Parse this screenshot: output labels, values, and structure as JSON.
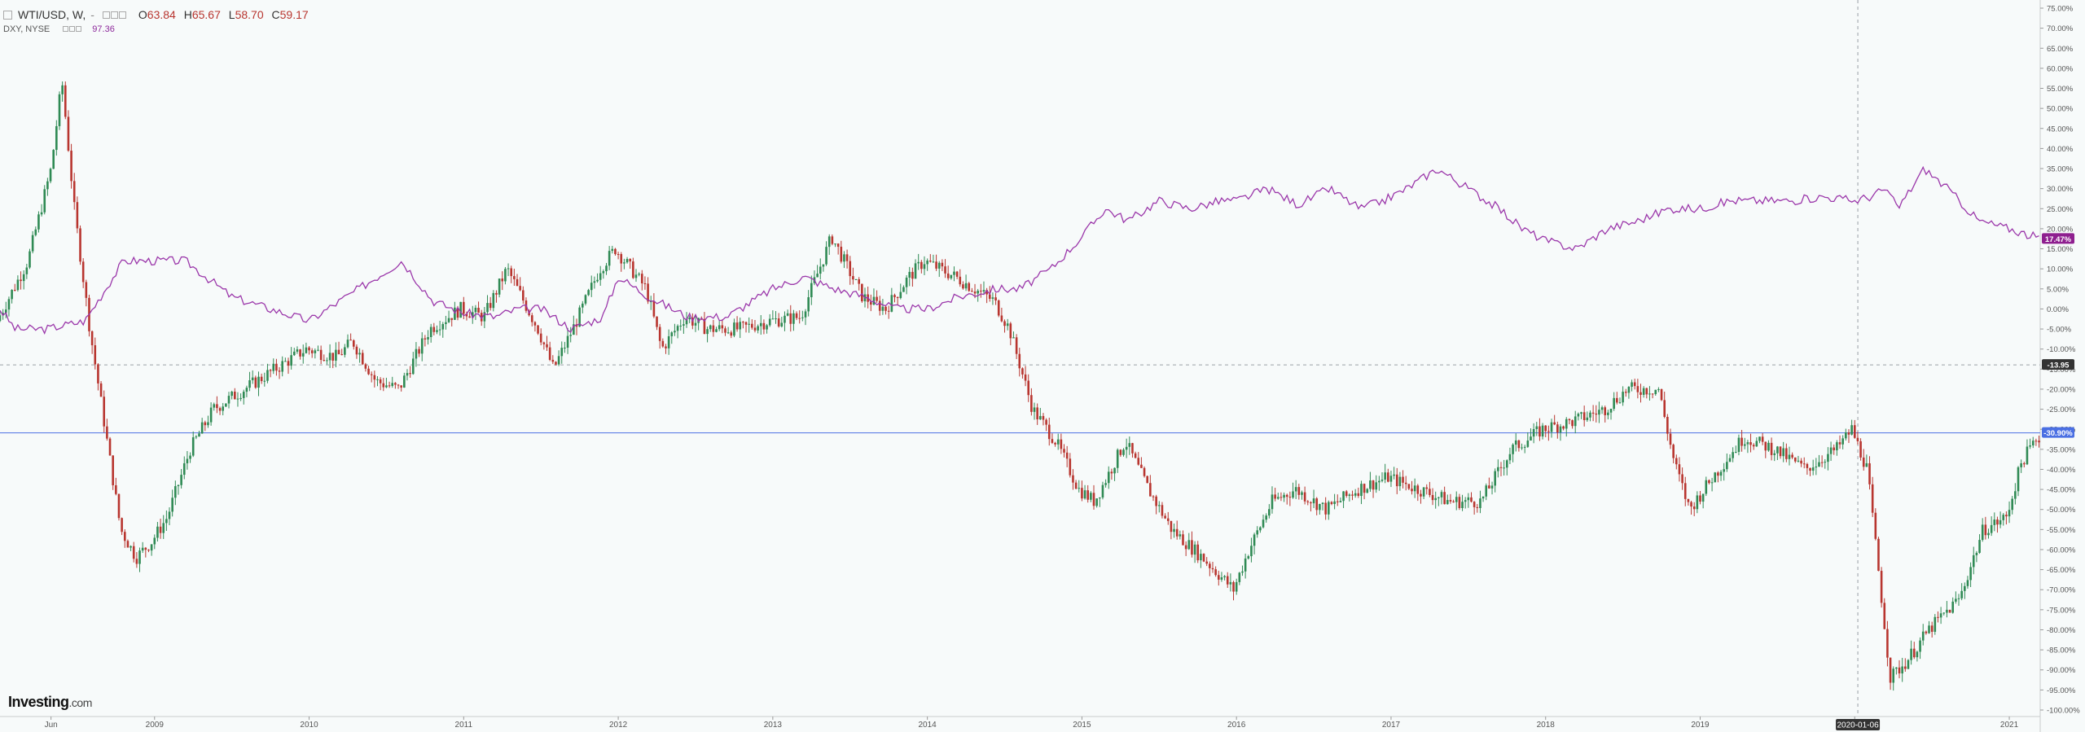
{
  "legend": {
    "symbol": "WTI/USD, W,",
    "dash": "-",
    "open_label": "O",
    "open": "63.84",
    "high_label": "H",
    "high": "65.67",
    "low_label": "L",
    "low": "58.70",
    "close_label": "C",
    "close": "59.17",
    "series2": "DXY, NYSE",
    "series2_value": "97.36"
  },
  "logo": {
    "main": "Investing",
    "suffix": ".com"
  },
  "colors": {
    "up": "#2f8a54",
    "down": "#b8352f",
    "dxy": "#9b37aa",
    "hline_blue": "#4a6fe3",
    "dashed": "#9aa0a6",
    "axis_text": "#555555",
    "badge_dxy": "#8e1f8f",
    "badge_blue": "#4a6fe3",
    "badge_gray": "#333333"
  },
  "chart_data": {
    "type": "line",
    "title": "WTI/USD, W,",
    "yaxis": {
      "scale": "percent",
      "ylim": [
        -100,
        75
      ],
      "tick_labels": [
        "75.00%",
        "70.00%",
        "65.00%",
        "60.00%",
        "55.00%",
        "50.00%",
        "45.00%",
        "40.00%",
        "35.00%",
        "30.00%",
        "25.00%",
        "20.00%",
        "15.00%",
        "10.00%",
        "5.00%",
        "0.00%",
        "-5.00%",
        "-10.00%",
        "-15.00%",
        "-20.00%",
        "-25.00%",
        "-30.00%",
        "-35.00%",
        "-40.00%",
        "-45.00%",
        "-50.00%",
        "-55.00%",
        "-60.00%",
        "-65.00%",
        "-70.00%",
        "-75.00%",
        "-80.00%",
        "-85.00%",
        "-90.00%",
        "-95.00%",
        "-100.00%"
      ],
      "tick_values": [
        75,
        70,
        65,
        60,
        55,
        50,
        45,
        40,
        35,
        30,
        25,
        20,
        15,
        10,
        5,
        0,
        -5,
        -10,
        -15,
        -20,
        -25,
        -30,
        -35,
        -40,
        -45,
        -50,
        -55,
        -60,
        -65,
        -70,
        -75,
        -80,
        -85,
        -90,
        -95,
        -100
      ]
    },
    "xaxis": {
      "xlim": [
        2008.0,
        2021.2
      ],
      "tick_labels": [
        "Jun",
        "2009",
        "2010",
        "2011",
        "2012",
        "2013",
        "2014",
        "2015",
        "2016",
        "2017",
        "2018",
        "2019",
        "2020",
        "2021"
      ],
      "tick_values": [
        2008.33,
        2009.0,
        2010.0,
        2011.0,
        2012.0,
        2013.0,
        2014.0,
        2015.0,
        2016.0,
        2017.0,
        2018.0,
        2019.0,
        2020.0,
        2021.0
      ]
    },
    "grid": false,
    "series": [
      {
        "name": "WTI/USD, W,",
        "style": "candles",
        "x": [
          2008.0,
          2008.2,
          2008.35,
          2008.42,
          2008.5,
          2008.6,
          2008.7,
          2008.8,
          2008.9,
          2009.0,
          2009.1,
          2009.25,
          2009.4,
          2009.6,
          2009.8,
          2010.0,
          2010.2,
          2010.3,
          2010.45,
          2010.6,
          2010.8,
          2011.0,
          2011.15,
          2011.3,
          2011.5,
          2011.6,
          2011.75,
          2011.9,
          2012.0,
          2012.2,
          2012.3,
          2012.45,
          2012.6,
          2012.8,
          2013.0,
          2013.2,
          2013.4,
          2013.6,
          2013.75,
          2013.9,
          2014.0,
          2014.2,
          2014.45,
          2014.55,
          2014.7,
          2014.85,
          2015.0,
          2015.1,
          2015.3,
          2015.45,
          2015.6,
          2015.8,
          2016.0,
          2016.1,
          2016.25,
          2016.4,
          2016.6,
          2016.8,
          2017.0,
          2017.2,
          2017.4,
          2017.6,
          2017.8,
          2018.0,
          2018.2,
          2018.4,
          2018.55,
          2018.75,
          2018.85,
          2018.95,
          2019.1,
          2019.3,
          2019.5,
          2019.7,
          2019.9,
          2020.0,
          2020.1,
          2020.25,
          2020.35,
          2020.5,
          2020.7,
          2020.85,
          2021.0,
          2021.1,
          2021.2
        ],
        "y": [
          -3,
          12,
          35,
          57,
          25,
          -5,
          -30,
          -55,
          -62,
          -58,
          -52,
          -35,
          -25,
          -20,
          -15,
          -10,
          -12,
          -8,
          -18,
          -20,
          -5,
          0,
          -2,
          10,
          -5,
          -15,
          -3,
          10,
          15,
          5,
          -10,
          -2,
          -5,
          -5,
          -3,
          -2,
          18,
          3,
          0,
          8,
          12,
          8,
          2,
          -5,
          -25,
          -33,
          -45,
          -48,
          -33,
          -45,
          -55,
          -62,
          -70,
          -60,
          -48,
          -45,
          -50,
          -45,
          -42,
          -45,
          -48,
          -48,
          -35,
          -30,
          -28,
          -25,
          -20,
          -20,
          -38,
          -50,
          -42,
          -32,
          -35,
          -40,
          -35,
          -30,
          -40,
          -92,
          -88,
          -80,
          -72,
          -55,
          -52,
          -38,
          -32
        ]
      },
      {
        "name": "DXY, NYSE",
        "style": "line",
        "x": [
          2008.0,
          2008.1,
          2008.3,
          2008.55,
          2008.65,
          2008.8,
          2009.0,
          2009.2,
          2009.5,
          2009.75,
          2010.0,
          2010.2,
          2010.4,
          2010.6,
          2010.8,
          2011.0,
          2011.2,
          2011.35,
          2011.5,
          2011.7,
          2011.9,
          2012.0,
          2012.2,
          2012.45,
          2012.7,
          2013.0,
          2013.2,
          2013.4,
          2013.6,
          2013.8,
          2014.0,
          2014.2,
          2014.45,
          2014.6,
          2014.8,
          2015.0,
          2015.15,
          2015.3,
          2015.5,
          2015.7,
          2015.9,
          2016.0,
          2016.2,
          2016.4,
          2016.6,
          2016.8,
          2016.95,
          2017.1,
          2017.3,
          2017.5,
          2017.7,
          2017.85,
          2018.0,
          2018.2,
          2018.4,
          2018.6,
          2018.8,
          2019.0,
          2019.2,
          2019.4,
          2019.6,
          2019.8,
          2020.0,
          2020.1,
          2020.2,
          2020.28,
          2020.45,
          2020.6,
          2020.8,
          2021.0,
          2021.2
        ],
        "y": [
          0,
          -5,
          -5,
          -3,
          3,
          12,
          12,
          12,
          3,
          0,
          -3,
          2,
          7,
          12,
          2,
          -1,
          -2,
          0,
          0,
          -5,
          -2,
          8,
          3,
          -2,
          -2,
          5,
          8,
          5,
          3,
          0,
          0,
          3,
          5,
          5,
          10,
          18,
          25,
          22,
          27,
          25,
          27,
          27,
          30,
          26,
          30,
          25,
          27,
          30,
          35,
          30,
          25,
          20,
          17,
          15,
          20,
          22,
          25,
          25,
          27,
          27,
          27,
          28,
          27,
          28,
          30,
          25,
          35,
          30,
          22,
          20,
          17.47
        ]
      }
    ],
    "annotations": {
      "last_dxy_badge": "17.47%",
      "hline_dashed_badge": "-13.95",
      "hline_dashed_value": -13.95,
      "hline_blue_badge": "-30.90%",
      "hline_blue_value": -30.9,
      "vline_date_label": "2020-01-06",
      "vline_x": 2020.02
    }
  }
}
